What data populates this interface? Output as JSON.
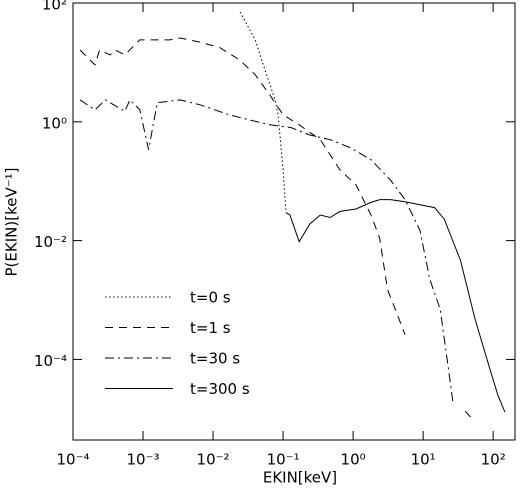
{
  "chart_data": {
    "type": "line",
    "xscale": "log",
    "yscale": "log",
    "xlabel": "EKIN[keV]",
    "ylabel": "P(EKIN)[keV⁻¹]",
    "xlim": [
      0.0001,
      205
    ],
    "ylim": [
      4.4e-06,
      100
    ],
    "xticks": [
      {
        "value": 0.0001,
        "label": "10⁻⁴"
      },
      {
        "value": 0.001,
        "label": "10⁻³"
      },
      {
        "value": 0.01,
        "label": "10⁻²"
      },
      {
        "value": 0.1,
        "label": "10⁻¹"
      },
      {
        "value": 1,
        "label": "10⁰"
      },
      {
        "value": 10,
        "label": "10¹"
      },
      {
        "value": 100,
        "label": "10²"
      }
    ],
    "yticks": [
      {
        "value": 0.0001,
        "label": "10⁻⁴"
      },
      {
        "value": 0.01,
        "label": "10⁻²"
      },
      {
        "value": 1,
        "label": "10⁰"
      },
      {
        "value": 100,
        "label": "10²"
      }
    ],
    "legend": "lower left",
    "series": [
      {
        "name": "t=0 s",
        "color": "#000000",
        "dash": "dotted",
        "x": [
          0.0243,
          0.04,
          0.055,
          0.077,
          0.085,
          0.1,
          0.11
        ],
        "values": [
          70.6,
          23.9,
          7.5,
          2.34,
          1.31,
          0.155,
          0.0295
        ]
      },
      {
        "name": "t=1 s",
        "color": "#000000",
        "dash": "dashed",
        "x": [
          0.000126,
          0.000206,
          0.00024,
          0.00034,
          0.0004,
          0.00055,
          0.0009,
          0.0024,
          0.0034,
          0.0065,
          0.0126,
          0.024,
          0.04,
          0.065,
          0.1,
          0.17,
          0.34,
          0.65,
          1.1,
          1.8,
          2.4,
          3.1,
          4.0,
          5.5,
          null,
          39.8,
          50.5
        ],
        "values": [
          16.2,
          9.1,
          16.2,
          13.4,
          16.2,
          13.4,
          23.9,
          23.9,
          25.8,
          22,
          17.6,
          11,
          6.2,
          2.8,
          1.31,
          0.89,
          0.5,
          0.155,
          0.087,
          0.027,
          0.011,
          0.0015,
          0.0007,
          0.00026,
          null,
          1.35e-05,
          9.9e-06
        ]
      },
      {
        "name": "t=30 s",
        "color": "#000000",
        "dash": "dashdot",
        "x": [
          0.000126,
          0.000206,
          0.00029,
          0.00055,
          0.00065,
          0.0009,
          0.0012,
          0.0016,
          0.0034,
          0.0065,
          0.017,
          0.034,
          0.065,
          0.13,
          0.24,
          0.47,
          0.9,
          1.8,
          3.4,
          5.5,
          9,
          12.5,
          17.5,
          23,
          27
        ],
        "values": [
          2.34,
          1.59,
          2.34,
          1.5,
          2.34,
          1.59,
          0.34,
          2.1,
          2.34,
          1.93,
          1.31,
          1.07,
          0.89,
          0.8,
          0.6,
          0.5,
          0.37,
          0.23,
          0.105,
          0.049,
          0.015,
          0.0022,
          0.0007,
          6.8e-05,
          1.7e-05
        ]
      },
      {
        "name": "t=300 s",
        "color": "#000000",
        "dash": "solid",
        "x": [
          0.11,
          0.125,
          0.17,
          0.24,
          0.34,
          0.47,
          0.65,
          1.1,
          1.8,
          2.4,
          3.4,
          5.5,
          9,
          14.6,
          20,
          34,
          55,
          90,
          117,
          147
        ],
        "values": [
          0.0295,
          0.027,
          0.0096,
          0.019,
          0.027,
          0.0245,
          0.031,
          0.034,
          0.044,
          0.049,
          0.049,
          0.045,
          0.04,
          0.036,
          0.023,
          0.0047,
          0.00048,
          6.8e-05,
          2.5e-05,
          1.3e-05
        ]
      }
    ]
  }
}
